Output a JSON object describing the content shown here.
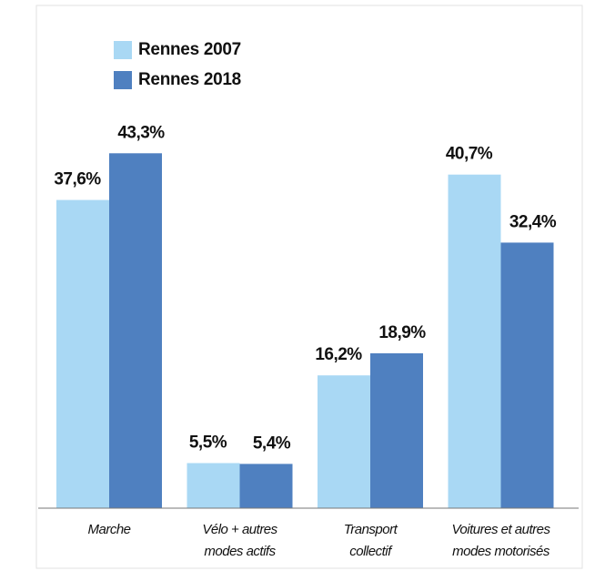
{
  "chart_data": {
    "type": "bar",
    "categories": [
      [
        "Marche"
      ],
      [
        "Vélo + autres",
        "modes actifs"
      ],
      [
        "Transport",
        "collectif"
      ],
      [
        "Voitures et autres",
        "modes motorisés"
      ]
    ],
    "series": [
      {
        "name": "Rennes 2007",
        "color": "#a9d8f4",
        "values": [
          37.6,
          5.5,
          16.2,
          40.7
        ],
        "value_labels": [
          "37,6%",
          "5,5%",
          "16,2%",
          "40,7%"
        ]
      },
      {
        "name": "Rennes 2018",
        "color": "#4f80c0",
        "values": [
          43.3,
          5.4,
          18.9,
          32.4
        ],
        "value_labels": [
          "43,3%",
          "5,4%",
          "18,9%",
          "32,4%"
        ]
      }
    ],
    "ylim": [
      0,
      50
    ]
  }
}
